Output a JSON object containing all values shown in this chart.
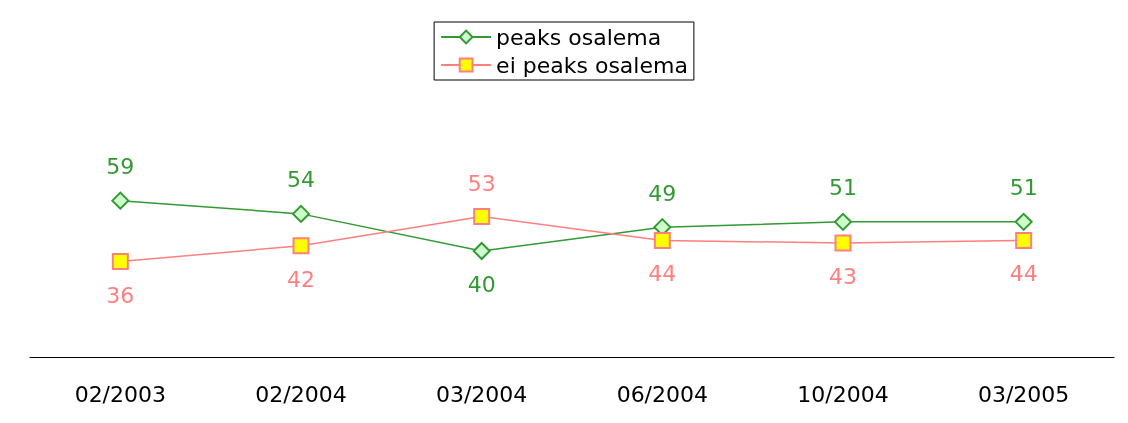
{
  "chart_data": {
    "type": "line",
    "categories": [
      "02/2003",
      "02/2004",
      "03/2004",
      "06/2004",
      "10/2004",
      "03/2005"
    ],
    "series": [
      {
        "name": "peaks osalema",
        "color": "#339933",
        "marker": "diamond",
        "values": [
          59,
          54,
          40,
          49,
          51,
          51
        ]
      },
      {
        "name": "ei peaks osalema",
        "color": "#ff7f7f",
        "marker": "square",
        "values": [
          36,
          42,
          53,
          44,
          43,
          44
        ]
      }
    ],
    "data_labels": true,
    "legend": "top",
    "grid": false
  }
}
